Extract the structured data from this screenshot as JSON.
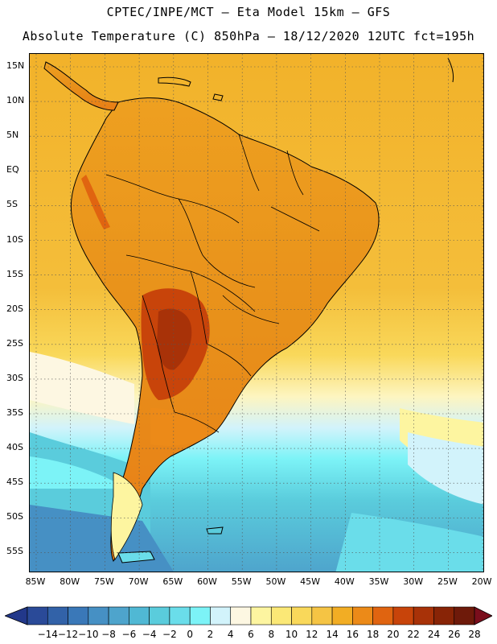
{
  "header": {
    "line1": "CPTEC/INPE/MCT –  Eta Model 15km – GFS",
    "line2": "Absolute Temperature (C) 850hPa – 18/12/2020 12UTC fct=195h"
  },
  "map": {
    "lat_ticks": [
      "15N",
      "10N",
      "5N",
      "EQ",
      "5S",
      "10S",
      "15S",
      "20S",
      "25S",
      "30S",
      "35S",
      "40S",
      "45S",
      "50S",
      "55S"
    ],
    "lon_ticks": [
      "85W",
      "80W",
      "75W",
      "70W",
      "65W",
      "60W",
      "55W",
      "50W",
      "45W",
      "40W",
      "35W",
      "30W",
      "25W",
      "20W"
    ]
  },
  "colorbar": {
    "labels": [
      "-14",
      "-12",
      "-10",
      "-8",
      "-6",
      "-4",
      "-2",
      "0",
      "2",
      "4",
      "6",
      "8",
      "10",
      "12",
      "14",
      "16",
      "18",
      "20",
      "22",
      "24",
      "26",
      "28"
    ],
    "colors": [
      "#2a4a98",
      "#3262a8",
      "#3a78b8",
      "#4690c4",
      "#4ea4cc",
      "#50b8d4",
      "#5accdc",
      "#6addea",
      "#7cf3f7",
      "#d2f3fb",
      "#fdf7e2",
      "#fdf5a0",
      "#fbe876",
      "#f9d85a",
      "#f5c444",
      "#f2ad24",
      "#ec8a18",
      "#e06410",
      "#c8440a",
      "#a83208",
      "#882406",
      "#6e1a0a"
    ],
    "low_color": "#22388a",
    "high_color": "#7a0e1c"
  }
}
